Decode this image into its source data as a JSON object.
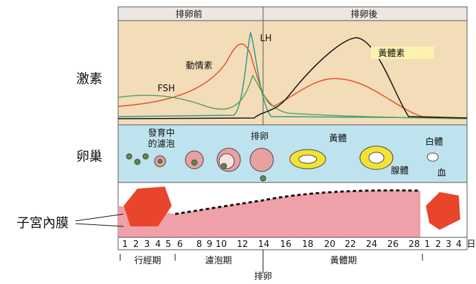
{
  "header": {
    "before": "排卵前",
    "after": "排卵後"
  },
  "row_labels": {
    "hormones": "激素",
    "ovary": "卵巢",
    "endometrium": "子宮內膜"
  },
  "hormones": {
    "estrogen": "動情素",
    "lh": "LH",
    "fsh": "FSH",
    "progesterone": "黃體素"
  },
  "ovary": {
    "developing_follicle": [
      "發育中",
      "的濾泡"
    ],
    "ovulation": "排卵",
    "corpus_luteum": "黃體",
    "corpus_albicans": "白體"
  },
  "endometrium": {
    "glands": "腺體",
    "blood": "血"
  },
  "days": [
    "1",
    "2",
    "3",
    "4",
    "5",
    "6",
    "8",
    "9",
    "10",
    "12",
    "14",
    "16",
    "18",
    "20",
    "22",
    "24",
    "26",
    "28",
    "1",
    "2",
    "3",
    "4"
  ],
  "day_unit": "日",
  "phases": {
    "menstrual": "行經期",
    "follicular": "濾泡期",
    "luteal": "黃體期"
  },
  "ovulation_marker": "排卵"
}
